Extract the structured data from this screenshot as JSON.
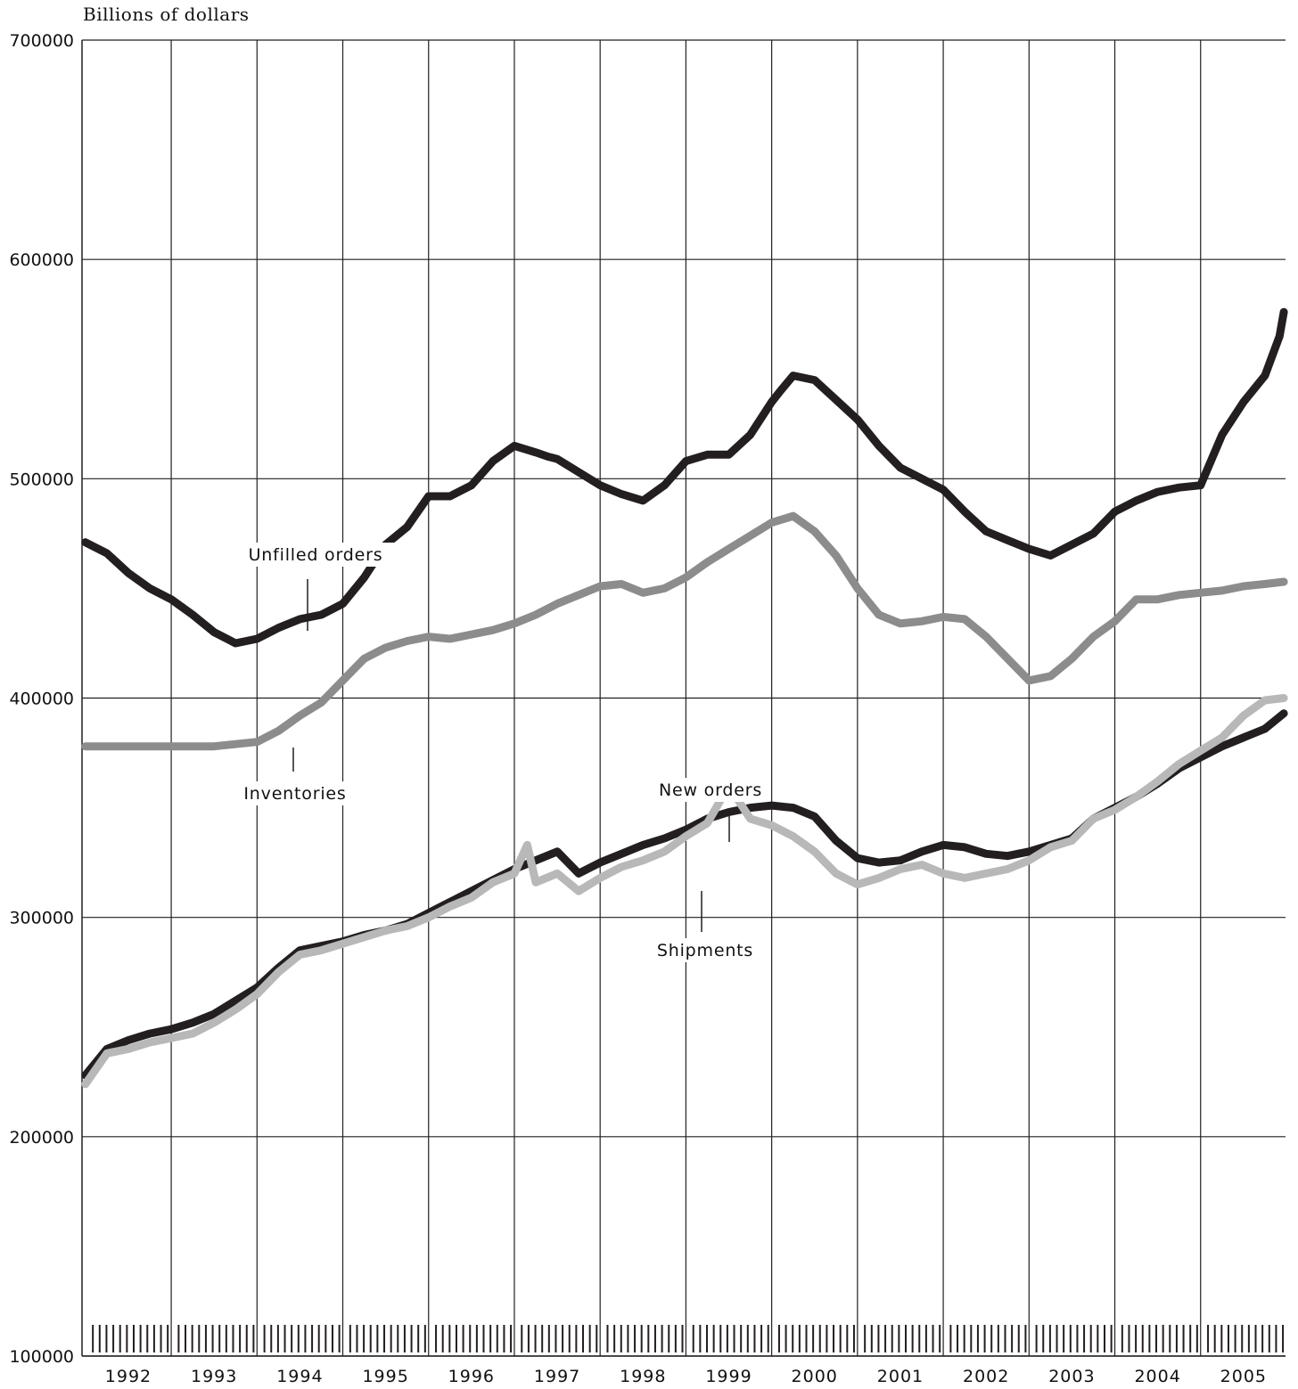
{
  "chart_data": {
    "type": "line",
    "title": "",
    "ylabel": "Billions of dollars",
    "xlabel": "",
    "ylim": [
      100000,
      700000
    ],
    "xlim": [
      1991.96,
      2005.99
    ],
    "yticks": [
      100000,
      200000,
      300000,
      400000,
      500000,
      600000,
      700000
    ],
    "ytick_labels": [
      "100000",
      "200000",
      "300000",
      "400000",
      "500000",
      "600000",
      "700000"
    ],
    "xtick_labels": [
      "1992",
      "1993",
      "1994",
      "1995",
      "1996",
      "1997",
      "1998",
      "1999",
      "2000",
      "2001",
      "2002",
      "2003",
      "2004",
      "2005"
    ],
    "grid": true,
    "colors": {
      "unfilled_orders": "#231f20",
      "inventories": "#8c8c8c",
      "new_orders": "#231f20",
      "shipments": "#b8b8b8",
      "grid": "#231f20"
    },
    "annotations": [
      "Unfilled orders",
      "Inventories",
      "New orders",
      "Shipments"
    ],
    "series": [
      {
        "name": "Unfilled orders",
        "x": [
          1992.0,
          1992.25,
          1992.5,
          1992.75,
          1993.0,
          1993.25,
          1993.5,
          1993.75,
          1994.0,
          1994.25,
          1994.5,
          1994.75,
          1995.0,
          1995.25,
          1995.5,
          1995.75,
          1996.0,
          1996.25,
          1996.5,
          1996.75,
          1997.0,
          1997.25,
          1997.4,
          1997.5,
          1997.75,
          1998.0,
          1998.25,
          1998.5,
          1998.75,
          1999.0,
          1999.25,
          1999.5,
          1999.75,
          2000.0,
          2000.1,
          2000.25,
          2000.5,
          2000.75,
          2001.0,
          2001.25,
          2001.5,
          2001.75,
          2002.0,
          2002.25,
          2002.5,
          2002.75,
          2003.0,
          2003.25,
          2003.5,
          2003.75,
          2004.0,
          2004.25,
          2004.5,
          2004.75,
          2005.0,
          2005.25,
          2005.5,
          2005.75,
          2005.92,
          2005.97
        ],
        "values": [
          471000,
          466000,
          457000,
          450000,
          445000,
          438000,
          430000,
          425000,
          427000,
          432000,
          436000,
          438000,
          443000,
          455000,
          470000,
          478000,
          492000,
          492000,
          497000,
          508000,
          515000,
          512000,
          510000,
          509000,
          503000,
          497000,
          493000,
          490000,
          497000,
          508000,
          511000,
          511000,
          520000,
          535000,
          540000,
          547000,
          545000,
          536000,
          527000,
          515000,
          505000,
          500000,
          495000,
          485000,
          476000,
          472000,
          468000,
          465000,
          470000,
          475000,
          485000,
          490000,
          494000,
          496000,
          497000,
          520000,
          535000,
          547000,
          565000,
          576000
        ]
      },
      {
        "name": "Inventories",
        "x": [
          1992.0,
          1992.5,
          1993.0,
          1993.5,
          1994.0,
          1994.25,
          1994.5,
          1994.75,
          1995.0,
          1995.25,
          1995.5,
          1995.75,
          1996.0,
          1996.25,
          1996.5,
          1996.75,
          1997.0,
          1997.25,
          1997.5,
          1997.75,
          1998.0,
          1998.25,
          1998.5,
          1998.75,
          1999.0,
          1999.25,
          1999.5,
          1999.75,
          2000.0,
          2000.25,
          2000.5,
          2000.75,
          2001.0,
          2001.25,
          2001.5,
          2001.75,
          2002.0,
          2002.25,
          2002.5,
          2002.75,
          2003.0,
          2003.25,
          2003.5,
          2003.75,
          2004.0,
          2004.25,
          2004.5,
          2004.75,
          2005.0,
          2005.25,
          2005.5,
          2005.75,
          2005.97
        ],
        "values": [
          378000,
          378000,
          378000,
          378000,
          380000,
          385000,
          392000,
          398000,
          408000,
          418000,
          423000,
          426000,
          428000,
          427000,
          429000,
          431000,
          434000,
          438000,
          443000,
          447000,
          451000,
          452000,
          448000,
          450000,
          455000,
          462000,
          468000,
          474000,
          480000,
          483000,
          476000,
          465000,
          450000,
          438000,
          434000,
          435000,
          437000,
          436000,
          428000,
          418000,
          408000,
          410000,
          418000,
          428000,
          435000,
          445000,
          445000,
          447000,
          448000,
          449000,
          451000,
          452000,
          453000
        ]
      },
      {
        "name": "New orders",
        "x": [
          1992.0,
          1992.25,
          1992.5,
          1992.75,
          1993.0,
          1993.25,
          1993.5,
          1993.75,
          1994.0,
          1994.25,
          1994.5,
          1994.75,
          1995.0,
          1995.25,
          1995.5,
          1995.75,
          1996.0,
          1996.25,
          1996.5,
          1996.75,
          1997.0,
          1997.25,
          1997.5,
          1997.75,
          1998.0,
          1998.25,
          1998.5,
          1998.75,
          1999.0,
          1999.25,
          1999.5,
          1999.75,
          2000.0,
          2000.25,
          2000.5,
          2000.75,
          2001.0,
          2001.25,
          2001.5,
          2001.75,
          2002.0,
          2002.25,
          2002.5,
          2002.75,
          2003.0,
          2003.25,
          2003.5,
          2003.75,
          2004.0,
          2004.25,
          2004.5,
          2004.75,
          2005.0,
          2005.25,
          2005.5,
          2005.75,
          2005.97
        ],
        "values": [
          228000,
          240000,
          244000,
          247000,
          249000,
          252000,
          256000,
          262000,
          268000,
          277000,
          285000,
          287000,
          289000,
          292000,
          294000,
          297000,
          302000,
          307000,
          312000,
          317000,
          322000,
          326000,
          330000,
          320000,
          325000,
          329000,
          333000,
          336000,
          340000,
          345000,
          348000,
          350000,
          351000,
          350000,
          346000,
          335000,
          327000,
          325000,
          326000,
          330000,
          333000,
          332000,
          329000,
          328000,
          330000,
          333000,
          336000,
          345000,
          350000,
          355000,
          361000,
          368000,
          373000,
          378000,
          382000,
          386000,
          393000
        ]
      },
      {
        "name": "Shipments",
        "x": [
          1992.0,
          1992.25,
          1992.5,
          1992.75,
          1993.0,
          1993.25,
          1993.5,
          1993.75,
          1994.0,
          1994.25,
          1994.5,
          1994.75,
          1995.0,
          1995.25,
          1995.5,
          1995.75,
          1996.0,
          1996.25,
          1996.5,
          1996.75,
          1997.0,
          1997.15,
          1997.25,
          1997.5,
          1997.75,
          1998.0,
          1998.25,
          1998.5,
          1998.75,
          1999.0,
          1999.25,
          1999.5,
          1999.75,
          2000.0,
          2000.25,
          2000.5,
          2000.75,
          2001.0,
          2001.25,
          2001.5,
          2001.75,
          2002.0,
          2002.25,
          2002.5,
          2002.75,
          2003.0,
          2003.25,
          2003.5,
          2003.75,
          2004.0,
          2004.25,
          2004.5,
          2004.75,
          2005.0,
          2005.25,
          2005.5,
          2005.75,
          2005.97
        ],
        "values": [
          224000,
          238000,
          240000,
          243000,
          245000,
          247000,
          252000,
          258000,
          265000,
          275000,
          283000,
          285000,
          288000,
          291000,
          294000,
          296000,
          300000,
          305000,
          309000,
          316000,
          320000,
          333000,
          316000,
          320000,
          312000,
          318000,
          323000,
          326000,
          330000,
          337000,
          343000,
          360000,
          345000,
          342000,
          337000,
          330000,
          320000,
          315000,
          318000,
          322000,
          324000,
          320000,
          318000,
          320000,
          322000,
          326000,
          332000,
          335000,
          345000,
          349000,
          355000,
          362000,
          370000,
          376000,
          382000,
          392000,
          399000,
          400000
        ]
      }
    ]
  }
}
